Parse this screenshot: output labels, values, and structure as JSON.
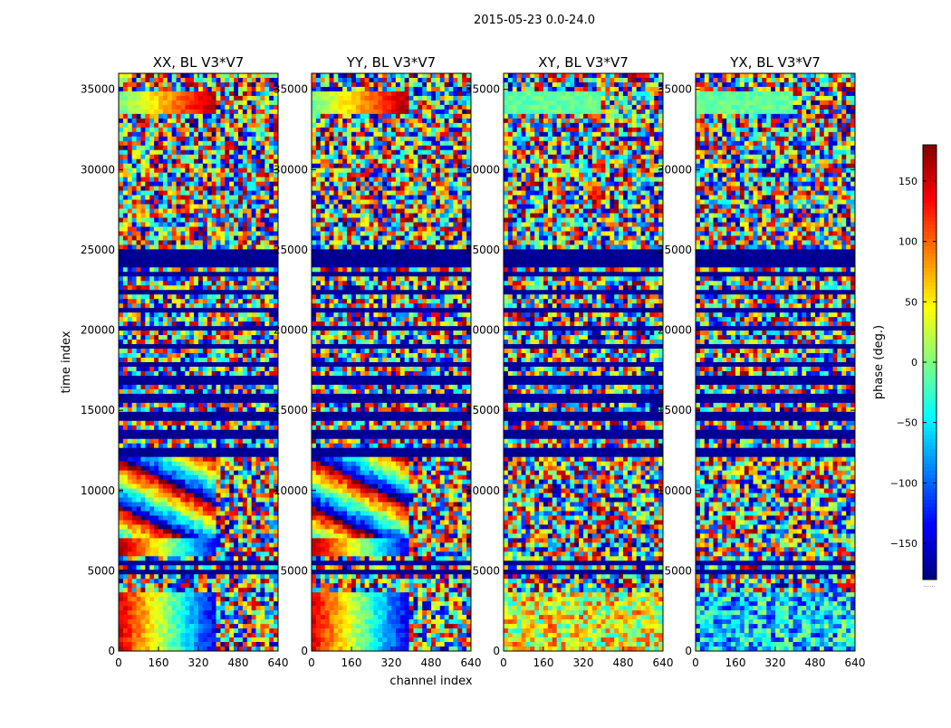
{
  "chart_data": {
    "type": "heatmap",
    "suptitle": "2015-05-23 0.0-24.0",
    "xlabel": "channel index",
    "ylabel": "time index",
    "xlim": [
      0,
      640
    ],
    "ylim": [
      0,
      36000
    ],
    "x_ticks": [
      0,
      160,
      320,
      480,
      640
    ],
    "y_ticks": [
      0,
      5000,
      10000,
      15000,
      20000,
      25000,
      30000,
      35000
    ],
    "colorbar": {
      "label": "phase (deg.)",
      "range": [
        -180,
        180
      ],
      "ticks": [
        -150,
        -100,
        -50,
        0,
        50,
        100,
        150
      ],
      "tick_labels": [
        "−150",
        "−100",
        "−50",
        "0",
        "50",
        "100",
        "150"
      ],
      "colormap": "jet",
      "below_label": "......"
    },
    "panels": [
      {
        "title": "XX, BL V3*V7",
        "structured_low": true
      },
      {
        "title": "YY, BL V3*V7",
        "structured_low": true
      },
      {
        "title": "XY, BL V3*V7",
        "structured_low": false
      },
      {
        "title": "YX, BL V3*V7",
        "structured_low": false
      }
    ]
  }
}
